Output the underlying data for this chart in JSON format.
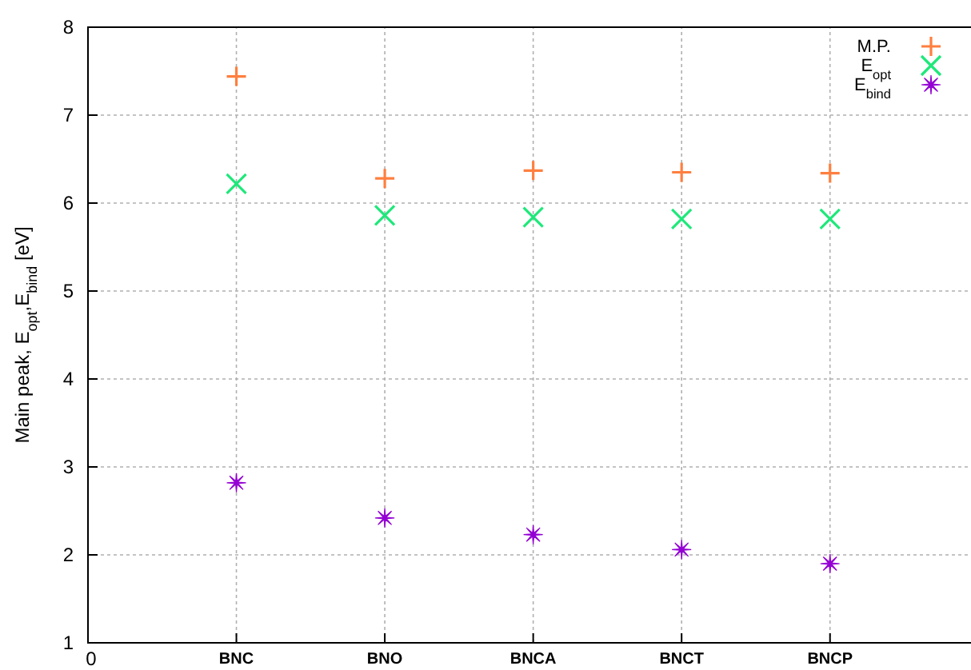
{
  "chart_data": {
    "type": "scatter",
    "ylabel": "Main peak, E$_{opt}$,E$_{bind}$ [eV]",
    "categories": [
      "BNC",
      "BNO",
      "BNCA",
      "BNCT",
      "BNCP"
    ],
    "annotations": [
      "0"
    ],
    "ylim": [
      1,
      8
    ],
    "yticks": [
      1,
      2,
      3,
      4,
      5,
      6,
      7,
      8
    ],
    "grid": true,
    "legend": "top right",
    "series": [
      {
        "name": "M.P.",
        "color": "#ff7f3f",
        "marker": "plus",
        "values": [
          7.44,
          6.28,
          6.37,
          6.35,
          6.34
        ]
      },
      {
        "name": "E$_{opt}$",
        "color": "#1ee87a",
        "marker": "cross",
        "values": [
          6.22,
          5.86,
          5.84,
          5.82,
          5.82
        ]
      },
      {
        "name": "E$_{bind}$",
        "color": "#9400d3",
        "marker": "star",
        "values": [
          2.82,
          2.42,
          2.23,
          2.06,
          1.9
        ]
      }
    ]
  }
}
